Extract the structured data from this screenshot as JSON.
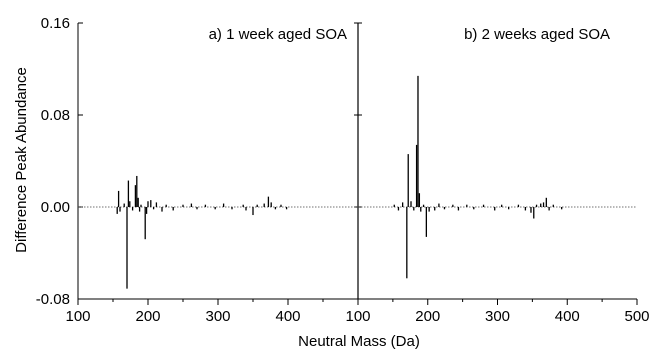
{
  "chart_data": [
    {
      "type": "bar",
      "panel_label": "a) 1 week aged SOA",
      "xlim": [
        100,
        500
      ],
      "ylim": [
        -0.08,
        0.16
      ],
      "xticks": [
        "100",
        "200",
        "300",
        "400"
      ],
      "yticks": [
        "-0.08",
        "0.00",
        "0.08",
        "0.16"
      ],
      "ylabel": "Difference Peak Abundance",
      "peaks": {
        "x": [
          156,
          158,
          160,
          166,
          170,
          172,
          174,
          178,
          182,
          184,
          186,
          188,
          190,
          196,
          198,
          200,
          204,
          208,
          212,
          220,
          226,
          236,
          250,
          262,
          270,
          282,
          296,
          308,
          320,
          336,
          340,
          350,
          356,
          366,
          372,
          376,
          382,
          390,
          398
        ],
        "y": [
          -0.006,
          0.014,
          -0.004,
          0.003,
          -0.071,
          0.023,
          0.005,
          -0.003,
          0.019,
          0.027,
          0.008,
          -0.004,
          0.002,
          -0.028,
          -0.006,
          0.005,
          0.006,
          -0.002,
          0.004,
          -0.004,
          0.002,
          -0.003,
          0.002,
          0.003,
          -0.002,
          0.002,
          -0.002,
          0.003,
          -0.002,
          0.002,
          -0.003,
          -0.007,
          0.002,
          0.003,
          0.009,
          0.004,
          -0.002,
          0.002,
          -0.002
        ]
      }
    },
    {
      "type": "bar",
      "panel_label": "b) 2 weeks aged SOA",
      "xlim": [
        100,
        500
      ],
      "ylim": [
        -0.08,
        0.16
      ],
      "xticks": [
        "100",
        "200",
        "300",
        "400",
        "500"
      ],
      "xlabel": "Neutral Mass (Da)",
      "peaks": {
        "x": [
          152,
          158,
          164,
          170,
          172,
          176,
          180,
          184,
          186,
          188,
          190,
          194,
          198,
          202,
          210,
          216,
          224,
          236,
          244,
          256,
          266,
          280,
          296,
          306,
          316,
          330,
          340,
          348,
          352,
          356,
          362,
          366,
          370,
          374,
          380,
          392
        ],
        "y": [
          0.002,
          -0.003,
          0.004,
          -0.062,
          0.046,
          0.005,
          -0.003,
          0.054,
          0.114,
          0.012,
          -0.004,
          0.002,
          -0.026,
          -0.004,
          -0.003,
          0.003,
          -0.002,
          0.002,
          -0.003,
          0.002,
          -0.002,
          0.002,
          -0.003,
          0.002,
          -0.002,
          0.002,
          -0.003,
          -0.005,
          -0.01,
          0.002,
          0.003,
          0.004,
          0.008,
          -0.003,
          0.002,
          -0.002
        ]
      }
    }
  ]
}
